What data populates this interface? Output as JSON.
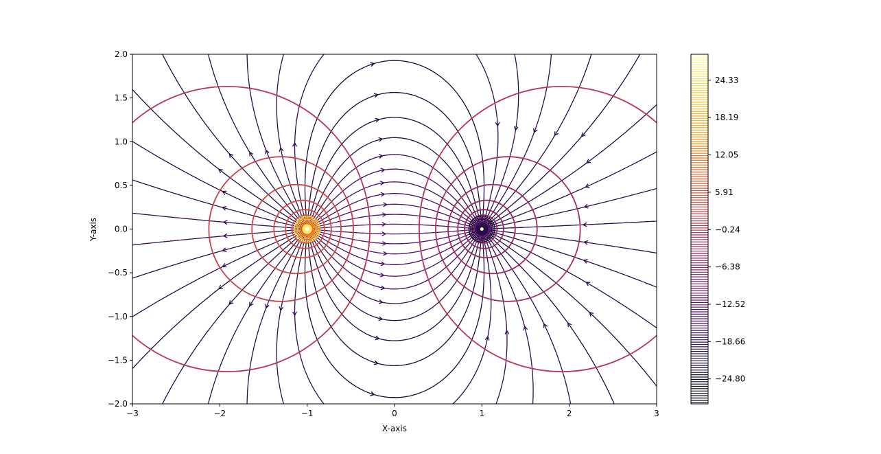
{
  "chart_data": {
    "type": "streamplot-contour",
    "title": "",
    "xlabel": "X-axis",
    "ylabel": "Y-axis",
    "xlim": [
      -3,
      3
    ],
    "ylim": [
      -2,
      2
    ],
    "x_ticks": [
      -3,
      -2,
      -1,
      0,
      1,
      2,
      3
    ],
    "x_tick_labels": [
      "−3",
      "−2",
      "−1",
      "0",
      "1",
      "2",
      "3"
    ],
    "y_ticks": [
      2.0,
      1.5,
      1.0,
      0.5,
      0.0,
      -0.5,
      -1.0,
      -1.5,
      -2.0
    ],
    "y_tick_labels": [
      "2.0",
      "1.5",
      "1.0",
      "0.5",
      "0.0",
      "−0.5",
      "−1.0",
      "−1.5",
      "−2.0"
    ],
    "charges": [
      {
        "x": -1,
        "y": 0,
        "sign": "positive"
      },
      {
        "x": 1,
        "y": 0,
        "sign": "negative"
      }
    ],
    "colorbar": {
      "colormap": "inferno",
      "min": -28.9,
      "max": 28.6,
      "ticks": [
        24.33,
        18.19,
        12.05,
        5.91,
        -0.24,
        -6.38,
        -12.52,
        -18.66,
        -24.8
      ],
      "tick_labels": [
        "24.33",
        "18.19",
        "12.05",
        "5.91",
        "−0.24",
        "−6.38",
        "−12.52",
        "−18.66",
        "−24.80"
      ]
    },
    "grid": false
  }
}
